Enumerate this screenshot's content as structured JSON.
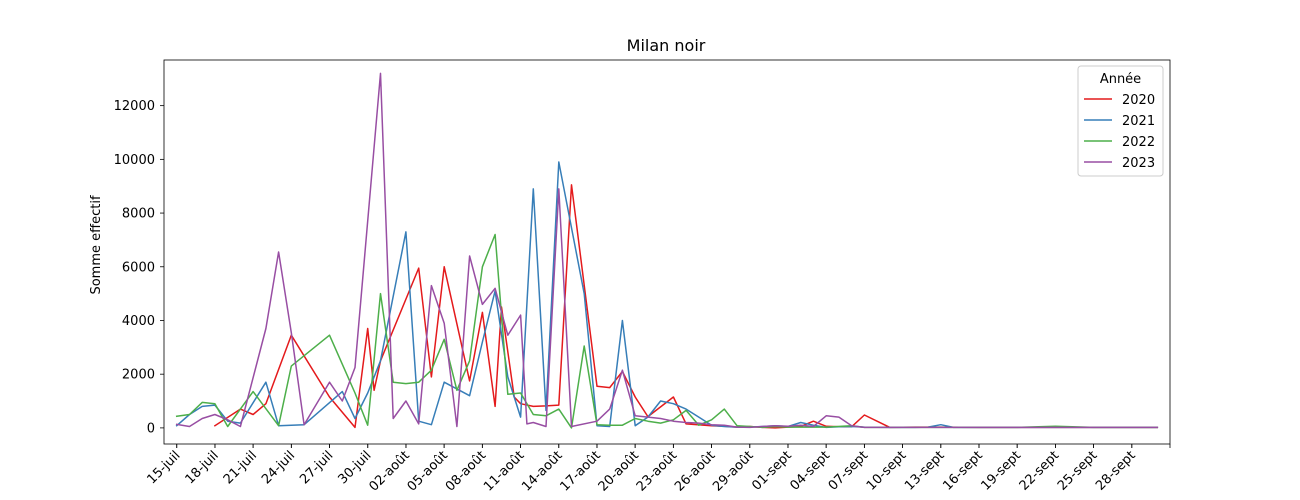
{
  "chart_data": {
    "type": "line",
    "title": "Milan noir",
    "xlabel": "",
    "ylabel": "Somme effectif",
    "ylim": [
      -600,
      13700
    ],
    "yticks": [
      0,
      2000,
      4000,
      6000,
      8000,
      10000,
      12000
    ],
    "x_unit": "day index (0 = 14-juil)",
    "xlim": [
      0,
      79
    ],
    "xtick_positions": [
      1,
      4,
      7,
      10,
      13,
      16,
      19,
      22,
      25,
      28,
      31,
      34,
      37,
      40,
      43,
      46,
      49,
      52,
      55,
      58,
      61,
      64,
      67,
      70,
      73,
      76
    ],
    "xtick_labels": [
      "15-juil",
      "18-juil",
      "21-juil",
      "24-juil",
      "27-juil",
      "30-juil",
      "02-août",
      "05-août",
      "08-août",
      "11-août",
      "14-août",
      "17-août",
      "20-août",
      "23-août",
      "26-août",
      "29-août",
      "01-sept",
      "04-sept",
      "07-sept",
      "10-sept",
      "13-sept",
      "16-sept",
      "19-sept",
      "22-sept",
      "25-sept",
      "28-sept"
    ],
    "legend": {
      "title": "Année",
      "position": "top-right"
    },
    "series": [
      {
        "name": "2020",
        "color": "#e41a1c",
        "points": [
          [
            4,
            80
          ],
          [
            6,
            700
          ],
          [
            7,
            500
          ],
          [
            8,
            900
          ],
          [
            10,
            3450
          ],
          [
            13,
            1150
          ],
          [
            15,
            20
          ],
          [
            16,
            3700
          ],
          [
            16.5,
            1400
          ],
          [
            17,
            2500
          ],
          [
            20,
            5950
          ],
          [
            21,
            1900
          ],
          [
            22,
            6000
          ],
          [
            24,
            1750
          ],
          [
            25,
            4300
          ],
          [
            26,
            800
          ],
          [
            26.5,
            4500
          ],
          [
            27.5,
            1150
          ],
          [
            28,
            900
          ],
          [
            29,
            800
          ],
          [
            30,
            820
          ],
          [
            31,
            850
          ],
          [
            32,
            9050
          ],
          [
            34,
            1550
          ],
          [
            35,
            1500
          ],
          [
            36,
            2100
          ],
          [
            37,
            1150
          ],
          [
            38,
            420
          ],
          [
            40,
            1150
          ],
          [
            41,
            150
          ],
          [
            43,
            80
          ],
          [
            44,
            60
          ],
          [
            45,
            30
          ],
          [
            46,
            50
          ],
          [
            47,
            20
          ],
          [
            48,
            0
          ],
          [
            49,
            30
          ],
          [
            50,
            50
          ],
          [
            51,
            250
          ],
          [
            52,
            60
          ],
          [
            53,
            40
          ],
          [
            54,
            40
          ],
          [
            55,
            480
          ],
          [
            57,
            20
          ],
          [
            59,
            30
          ],
          [
            61,
            30
          ],
          [
            64,
            20
          ],
          [
            67,
            20
          ],
          [
            70,
            20
          ],
          [
            73,
            20
          ],
          [
            76,
            20
          ],
          [
            78,
            20
          ]
        ]
      },
      {
        "name": "2021",
        "color": "#377eb8",
        "points": [
          [
            1,
            80
          ],
          [
            2,
            500
          ],
          [
            3,
            800
          ],
          [
            4,
            850
          ],
          [
            5,
            250
          ],
          [
            6,
            180
          ],
          [
            8,
            1700
          ],
          [
            9,
            80
          ],
          [
            11,
            120
          ],
          [
            14,
            1350
          ],
          [
            15,
            350
          ],
          [
            16,
            1300
          ],
          [
            17,
            2500
          ],
          [
            19,
            7300
          ],
          [
            20,
            250
          ],
          [
            21,
            120
          ],
          [
            22,
            1700
          ],
          [
            24,
            1200
          ],
          [
            25,
            3200
          ],
          [
            26,
            5100
          ],
          [
            27,
            1900
          ],
          [
            28,
            400
          ],
          [
            29,
            8900
          ],
          [
            30,
            650
          ],
          [
            31,
            9900
          ],
          [
            33,
            5000
          ],
          [
            34,
            80
          ],
          [
            35,
            50
          ],
          [
            36,
            4000
          ],
          [
            37,
            80
          ],
          [
            38,
            400
          ],
          [
            39,
            1000
          ],
          [
            40,
            900
          ],
          [
            41,
            700
          ],
          [
            42,
            400
          ],
          [
            43,
            100
          ],
          [
            44,
            50
          ],
          [
            45,
            30
          ],
          [
            46,
            30
          ],
          [
            47,
            50
          ],
          [
            48,
            80
          ],
          [
            49,
            50
          ],
          [
            50,
            200
          ],
          [
            51,
            100
          ],
          [
            52,
            20
          ],
          [
            53,
            40
          ],
          [
            54,
            50
          ],
          [
            55,
            30
          ],
          [
            57,
            20
          ],
          [
            59,
            20
          ],
          [
            60,
            30
          ],
          [
            61,
            120
          ],
          [
            62,
            20
          ],
          [
            64,
            20
          ],
          [
            67,
            20
          ],
          [
            70,
            20
          ],
          [
            73,
            20
          ],
          [
            76,
            20
          ],
          [
            78,
            20
          ]
        ]
      },
      {
        "name": "2022",
        "color": "#4daf4a",
        "points": [
          [
            1,
            430
          ],
          [
            2,
            500
          ],
          [
            3,
            950
          ],
          [
            4,
            900
          ],
          [
            5,
            50
          ],
          [
            7,
            1350
          ],
          [
            9,
            80
          ],
          [
            10,
            2300
          ],
          [
            13,
            3450
          ],
          [
            15,
            1300
          ],
          [
            16,
            100
          ],
          [
            17,
            5000
          ],
          [
            18,
            1700
          ],
          [
            19,
            1650
          ],
          [
            20,
            1700
          ],
          [
            21,
            2150
          ],
          [
            22,
            3300
          ],
          [
            23,
            1400
          ],
          [
            24,
            2500
          ],
          [
            25,
            6000
          ],
          [
            26,
            7200
          ],
          [
            27,
            1250
          ],
          [
            28,
            1300
          ],
          [
            29,
            500
          ],
          [
            30,
            450
          ],
          [
            31,
            700
          ],
          [
            32,
            0
          ],
          [
            33,
            3050
          ],
          [
            34,
            120
          ],
          [
            35,
            100
          ],
          [
            36,
            100
          ],
          [
            37,
            350
          ],
          [
            38,
            250
          ],
          [
            39,
            180
          ],
          [
            40,
            300
          ],
          [
            41,
            650
          ],
          [
            42,
            100
          ],
          [
            43,
            300
          ],
          [
            44,
            700
          ],
          [
            45,
            80
          ],
          [
            46,
            50
          ],
          [
            47,
            20
          ],
          [
            48,
            50
          ],
          [
            49,
            30
          ],
          [
            51,
            30
          ],
          [
            52,
            30
          ],
          [
            54,
            80
          ],
          [
            55,
            20
          ],
          [
            57,
            20
          ],
          [
            59,
            20
          ],
          [
            61,
            20
          ],
          [
            64,
            20
          ],
          [
            67,
            20
          ],
          [
            70,
            60
          ],
          [
            73,
            20
          ],
          [
            76,
            20
          ],
          [
            78,
            20
          ]
        ]
      },
      {
        "name": "2023",
        "color": "#984ea3",
        "points": [
          [
            1,
            130
          ],
          [
            2,
            50
          ],
          [
            3,
            350
          ],
          [
            4,
            500
          ],
          [
            5,
            300
          ],
          [
            6,
            50
          ],
          [
            8,
            3700
          ],
          [
            9,
            6550
          ],
          [
            10,
            3550
          ],
          [
            11,
            120
          ],
          [
            13,
            1700
          ],
          [
            14,
            1000
          ],
          [
            15,
            2250
          ],
          [
            17,
            13200
          ],
          [
            18,
            350
          ],
          [
            19,
            1000
          ],
          [
            20,
            150
          ],
          [
            21,
            5300
          ],
          [
            22,
            3900
          ],
          [
            23,
            50
          ],
          [
            24,
            6400
          ],
          [
            25,
            4600
          ],
          [
            26,
            5200
          ],
          [
            27,
            3450
          ],
          [
            28,
            4200
          ],
          [
            28.5,
            150
          ],
          [
            29,
            200
          ],
          [
            30,
            50
          ],
          [
            31,
            8900
          ],
          [
            32,
            50
          ],
          [
            34,
            250
          ],
          [
            35,
            700
          ],
          [
            36,
            2150
          ],
          [
            37,
            450
          ],
          [
            38,
            400
          ],
          [
            39,
            350
          ],
          [
            40,
            250
          ],
          [
            41,
            200
          ],
          [
            42,
            180
          ],
          [
            43,
            120
          ],
          [
            44,
            100
          ],
          [
            45,
            30
          ],
          [
            46,
            20
          ],
          [
            47,
            50
          ],
          [
            48,
            80
          ],
          [
            49,
            60
          ],
          [
            50,
            100
          ],
          [
            51,
            50
          ],
          [
            52,
            450
          ],
          [
            53,
            400
          ],
          [
            54,
            80
          ],
          [
            55,
            20
          ],
          [
            57,
            20
          ],
          [
            59,
            20
          ],
          [
            61,
            20
          ],
          [
            64,
            20
          ],
          [
            67,
            20
          ],
          [
            70,
            20
          ],
          [
            73,
            20
          ],
          [
            76,
            20
          ],
          [
            78,
            20
          ]
        ]
      }
    ]
  }
}
